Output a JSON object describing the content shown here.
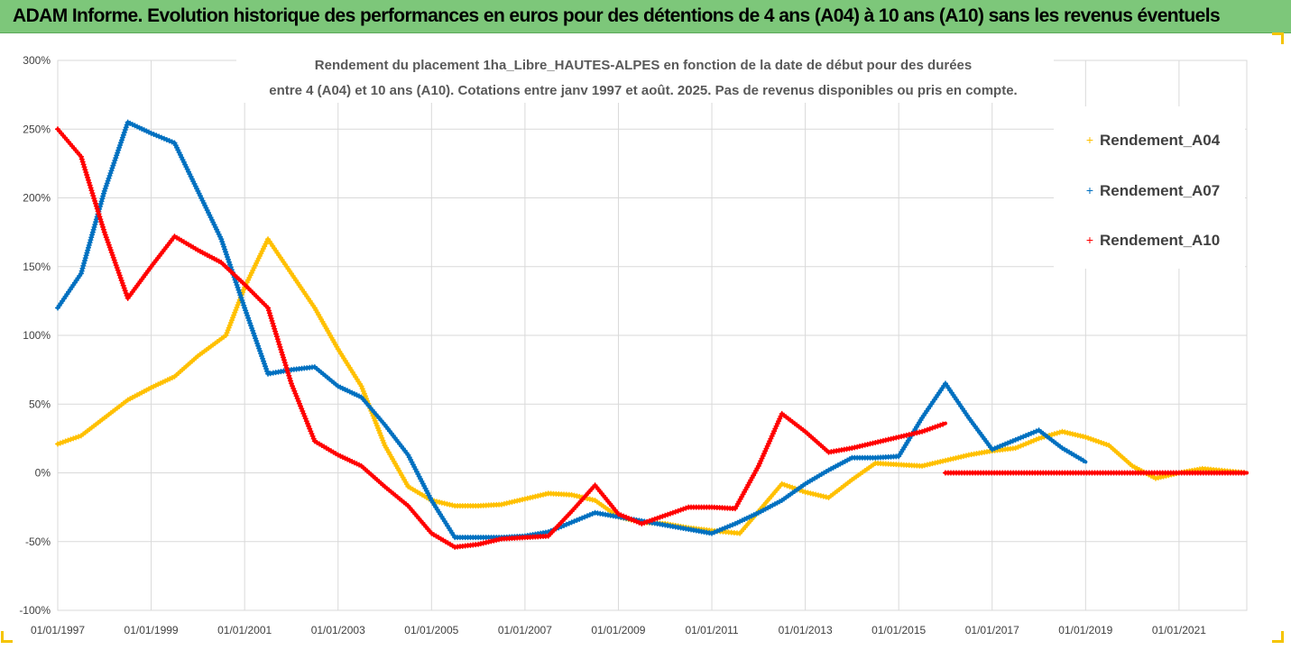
{
  "banner": {
    "title": "ADAM Informe. Evolution historique des performances en euros pour des détentions de 4 ans (A04) à 10 ans (A10) sans les revenus éventuels"
  },
  "chart_data": {
    "type": "line",
    "title_lines": [
      "Rendement du placement 1ha_Libre_HAUTES-ALPES en fonction de la date de début pour des durées",
      "entre 4 (A04) et 10 ans (A10). Cotations entre janv 1997 et août. 2025. Pas de revenus disponibles ou pris en compte."
    ],
    "xlabel": "",
    "ylabel": "",
    "x_ticks": [
      "01/01/1997",
      "01/01/1999",
      "01/01/2001",
      "01/01/2003",
      "01/01/2005",
      "01/01/2007",
      "01/01/2009",
      "01/01/2011",
      "01/01/2013",
      "01/01/2015",
      "01/01/2017",
      "01/01/2019",
      "01/01/2021"
    ],
    "y_ticks": [
      "300%",
      "250%",
      "200%",
      "150%",
      "100%",
      "50%",
      "0%",
      "-50%",
      "-100%"
    ],
    "ylim": [
      -100,
      300
    ],
    "xlim": [
      1997.0,
      2022.45
    ],
    "legend_position": "top-right",
    "marker": "+",
    "series": [
      {
        "name": "Rendement_A04",
        "color": "#ffc000",
        "points": [
          [
            1997.0,
            21
          ],
          [
            1997.5,
            27
          ],
          [
            1998.0,
            40
          ],
          [
            1998.5,
            53
          ],
          [
            1999.0,
            62
          ],
          [
            1999.5,
            70
          ],
          [
            2000.0,
            85
          ],
          [
            2000.6,
            100
          ],
          [
            2001.0,
            135
          ],
          [
            2001.5,
            170
          ],
          [
            2002.0,
            145
          ],
          [
            2002.5,
            120
          ],
          [
            2003.0,
            90
          ],
          [
            2003.5,
            63
          ],
          [
            2004.0,
            20
          ],
          [
            2004.5,
            -10
          ],
          [
            2005.0,
            -20
          ],
          [
            2005.5,
            -24
          ],
          [
            2006.0,
            -24
          ],
          [
            2006.5,
            -23
          ],
          [
            2007.0,
            -19
          ],
          [
            2007.5,
            -15
          ],
          [
            2008.0,
            -16
          ],
          [
            2008.5,
            -20
          ],
          [
            2009.0,
            -32
          ],
          [
            2009.5,
            -36
          ],
          [
            2010.0,
            -37
          ],
          [
            2010.5,
            -40
          ],
          [
            2011.0,
            -42
          ],
          [
            2011.6,
            -44
          ],
          [
            2012.0,
            -28
          ],
          [
            2012.5,
            -8
          ],
          [
            2013.0,
            -14
          ],
          [
            2013.5,
            -18
          ],
          [
            2014.0,
            -5
          ],
          [
            2014.5,
            7
          ],
          [
            2015.0,
            6
          ],
          [
            2015.5,
            5
          ],
          [
            2016.0,
            9
          ],
          [
            2016.5,
            13
          ],
          [
            2017.0,
            16
          ],
          [
            2017.5,
            18
          ],
          [
            2018.0,
            25
          ],
          [
            2018.5,
            30
          ],
          [
            2019.0,
            26
          ],
          [
            2019.5,
            20
          ],
          [
            2020.0,
            5
          ],
          [
            2020.5,
            -4
          ],
          [
            2021.0,
            0
          ],
          [
            2021.5,
            3
          ],
          [
            2022.45,
            0
          ]
        ]
      },
      {
        "name": "Rendement_A07",
        "color": "#0070c0",
        "points": [
          [
            1997.0,
            120
          ],
          [
            1997.5,
            145
          ],
          [
            1998.0,
            205
          ],
          [
            1998.5,
            255
          ],
          [
            1999.0,
            247
          ],
          [
            1999.5,
            240
          ],
          [
            2000.0,
            205
          ],
          [
            2000.5,
            170
          ],
          [
            2001.0,
            120
          ],
          [
            2001.5,
            72
          ],
          [
            2002.0,
            75
          ],
          [
            2002.5,
            77
          ],
          [
            2003.0,
            63
          ],
          [
            2003.5,
            55
          ],
          [
            2004.0,
            35
          ],
          [
            2004.5,
            13
          ],
          [
            2005.0,
            -20
          ],
          [
            2005.5,
            -47
          ],
          [
            2006.0,
            -47
          ],
          [
            2006.5,
            -47
          ],
          [
            2007.0,
            -46
          ],
          [
            2007.5,
            -43
          ],
          [
            2008.0,
            -36
          ],
          [
            2008.5,
            -29
          ],
          [
            2009.0,
            -32
          ],
          [
            2009.5,
            -35
          ],
          [
            2010.0,
            -38
          ],
          [
            2010.5,
            -41
          ],
          [
            2011.0,
            -44
          ],
          [
            2011.5,
            -37
          ],
          [
            2012.0,
            -29
          ],
          [
            2012.5,
            -20
          ],
          [
            2013.0,
            -8
          ],
          [
            2013.5,
            2
          ],
          [
            2014.0,
            11
          ],
          [
            2014.5,
            11
          ],
          [
            2015.0,
            12
          ],
          [
            2015.5,
            40
          ],
          [
            2016.0,
            65
          ],
          [
            2016.5,
            40
          ],
          [
            2017.0,
            17
          ],
          [
            2017.5,
            24
          ],
          [
            2018.0,
            31
          ],
          [
            2018.5,
            18
          ],
          [
            2019.0,
            8
          ]
        ]
      },
      {
        "name": "Rendement_A10",
        "color": "#ff0000",
        "points": [
          [
            1997.0,
            250
          ],
          [
            1997.5,
            230
          ],
          [
            1998.0,
            175
          ],
          [
            1998.5,
            127
          ],
          [
            1999.0,
            150
          ],
          [
            1999.5,
            172
          ],
          [
            2000.0,
            162
          ],
          [
            2000.5,
            153
          ],
          [
            2001.0,
            137
          ],
          [
            2001.5,
            120
          ],
          [
            2002.0,
            65
          ],
          [
            2002.5,
            23
          ],
          [
            2003.0,
            13
          ],
          [
            2003.5,
            5
          ],
          [
            2004.0,
            -10
          ],
          [
            2004.5,
            -24
          ],
          [
            2005.0,
            -44
          ],
          [
            2005.5,
            -54
          ],
          [
            2006.0,
            -52
          ],
          [
            2006.5,
            -48
          ],
          [
            2007.0,
            -47
          ],
          [
            2007.5,
            -46
          ],
          [
            2008.0,
            -28
          ],
          [
            2008.5,
            -9
          ],
          [
            2009.0,
            -30
          ],
          [
            2009.5,
            -37
          ],
          [
            2010.0,
            -31
          ],
          [
            2010.5,
            -25
          ],
          [
            2011.0,
            -25
          ],
          [
            2011.5,
            -26
          ],
          [
            2012.0,
            5
          ],
          [
            2012.5,
            43
          ],
          [
            2013.0,
            30
          ],
          [
            2013.5,
            15
          ],
          [
            2014.0,
            18
          ],
          [
            2014.5,
            22
          ],
          [
            2015.0,
            26
          ],
          [
            2015.5,
            30
          ],
          [
            2016.0,
            36
          ]
        ]
      },
      {
        "name": "",
        "color": "#ff0000",
        "points": [
          [
            2016.0,
            0
          ],
          [
            2022.45,
            0
          ]
        ]
      }
    ]
  }
}
